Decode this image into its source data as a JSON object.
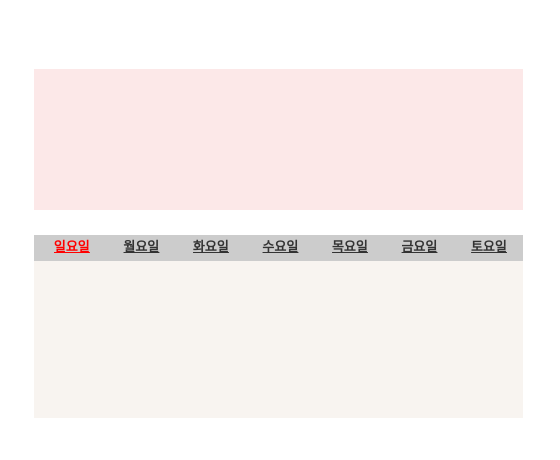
{
  "colors": {
    "banner_bg": "#fce8e8",
    "tabs_bg": "#cccccc",
    "panel_bg": "#f8f4f0",
    "active_tab": "#ff0000",
    "tab_text": "#333333"
  },
  "week_tabs": [
    {
      "label": "일요일",
      "active": true
    },
    {
      "label": "월요일",
      "active": false
    },
    {
      "label": "화요일",
      "active": false
    },
    {
      "label": "수요일",
      "active": false
    },
    {
      "label": "목요일",
      "active": false
    },
    {
      "label": "금요일",
      "active": false
    },
    {
      "label": "토요일",
      "active": false
    }
  ]
}
